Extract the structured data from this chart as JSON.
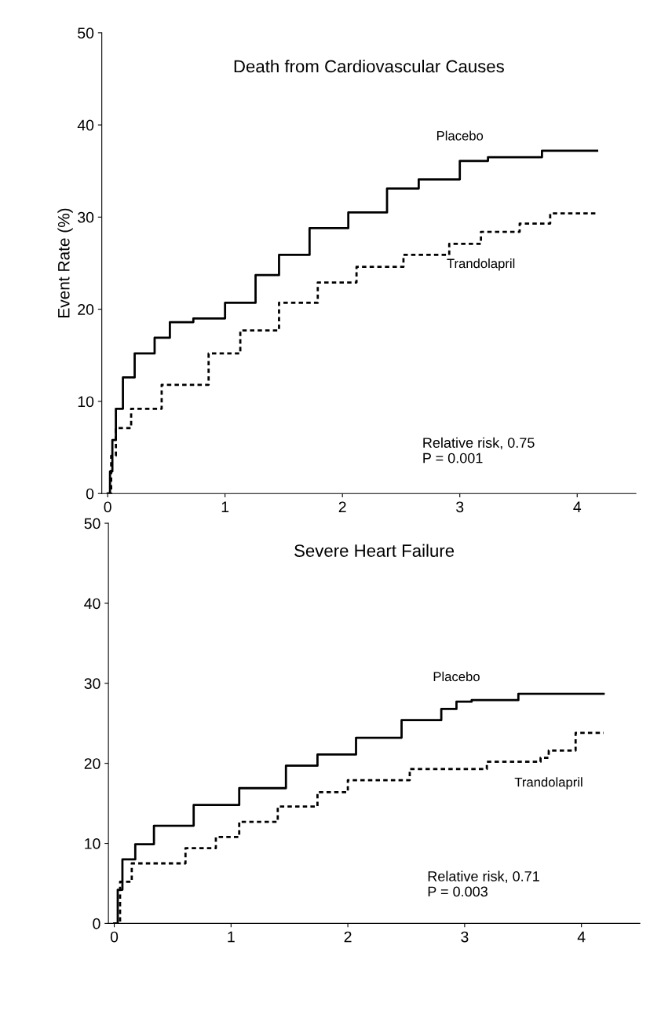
{
  "chart_data": [
    {
      "type": "step",
      "title": "Death from Cardiovascular Causes",
      "ylabel": "Event Rate (%)",
      "xlim": [
        -0.05,
        4.5
      ],
      "ylim": [
        0,
        50
      ],
      "xticks": [
        0,
        1,
        2,
        3,
        4
      ],
      "yticks": [
        0,
        10,
        20,
        30,
        40,
        50
      ],
      "grid": false,
      "legend": false,
      "annotations": [
        "Relative risk, 0.75\nP = 0.001"
      ],
      "series": [
        {
          "name": "Placebo",
          "color": "#000000",
          "line_style": "solid",
          "x": [
            0,
            0.02,
            0.04,
            0.07,
            0.13,
            0.23,
            0.4,
            0.53,
            0.73,
            1.0,
            1.26,
            1.46,
            1.72,
            2.05,
            2.38,
            2.65,
            3.0,
            3.24,
            3.7,
            4.17
          ],
          "values": [
            0,
            2.4,
            5.8,
            9.2,
            12.6,
            15.2,
            16.9,
            18.6,
            19,
            20.7,
            23.7,
            25.9,
            28.8,
            30.5,
            33.1,
            34.1,
            36.1,
            36.5,
            37.2,
            37.2
          ]
        },
        {
          "name": "Trandolapril",
          "color": "#000000",
          "line_style": "dashed",
          "x": [
            0,
            0.03,
            0.07,
            0.2,
            0.46,
            0.86,
            1.13,
            1.46,
            1.79,
            2.12,
            2.52,
            2.91,
            3.18,
            3.51,
            3.77,
            4.17
          ],
          "values": [
            0,
            4.1,
            7.1,
            9.2,
            11.8,
            15.2,
            17.7,
            20.7,
            22.9,
            24.6,
            25.9,
            27.1,
            28.4,
            29.3,
            30.4,
            30.4
          ]
        }
      ]
    },
    {
      "type": "step",
      "title": "Severe Heart Failure",
      "xlim": [
        -0.05,
        4.5
      ],
      "ylim": [
        0,
        50
      ],
      "xticks": [
        0,
        1,
        2,
        3,
        4
      ],
      "yticks": [
        0,
        10,
        20,
        30,
        40,
        50
      ],
      "grid": false,
      "legend": false,
      "annotations": [
        "Relative risk, 0.71\nP = 0.003"
      ],
      "series": [
        {
          "name": "Placebo",
          "color": "#000000",
          "line_style": "solid",
          "x": [
            0,
            0.03,
            0.07,
            0.18,
            0.34,
            0.68,
            1.07,
            1.47,
            1.74,
            2.07,
            2.46,
            2.8,
            2.93,
            3.06,
            3.46,
            4.19
          ],
          "values": [
            0,
            4.2,
            8,
            9.9,
            12.2,
            14.8,
            16.9,
            19.7,
            21.1,
            23.2,
            25.4,
            26.8,
            27.7,
            27.9,
            28.7,
            28.7
          ]
        },
        {
          "name": "Trandolapril",
          "color": "#000000",
          "line_style": "dashed",
          "x": [
            0,
            0.05,
            0.15,
            0.61,
            0.87,
            1.07,
            1.4,
            1.74,
            2.0,
            2.53,
            3.19,
            3.65,
            3.72,
            3.95,
            4.19
          ],
          "values": [
            0,
            5.2,
            7.5,
            9.4,
            10.8,
            12.7,
            14.6,
            16.4,
            17.9,
            19.3,
            20.2,
            20.7,
            21.6,
            23.8,
            23.8
          ]
        }
      ]
    }
  ]
}
